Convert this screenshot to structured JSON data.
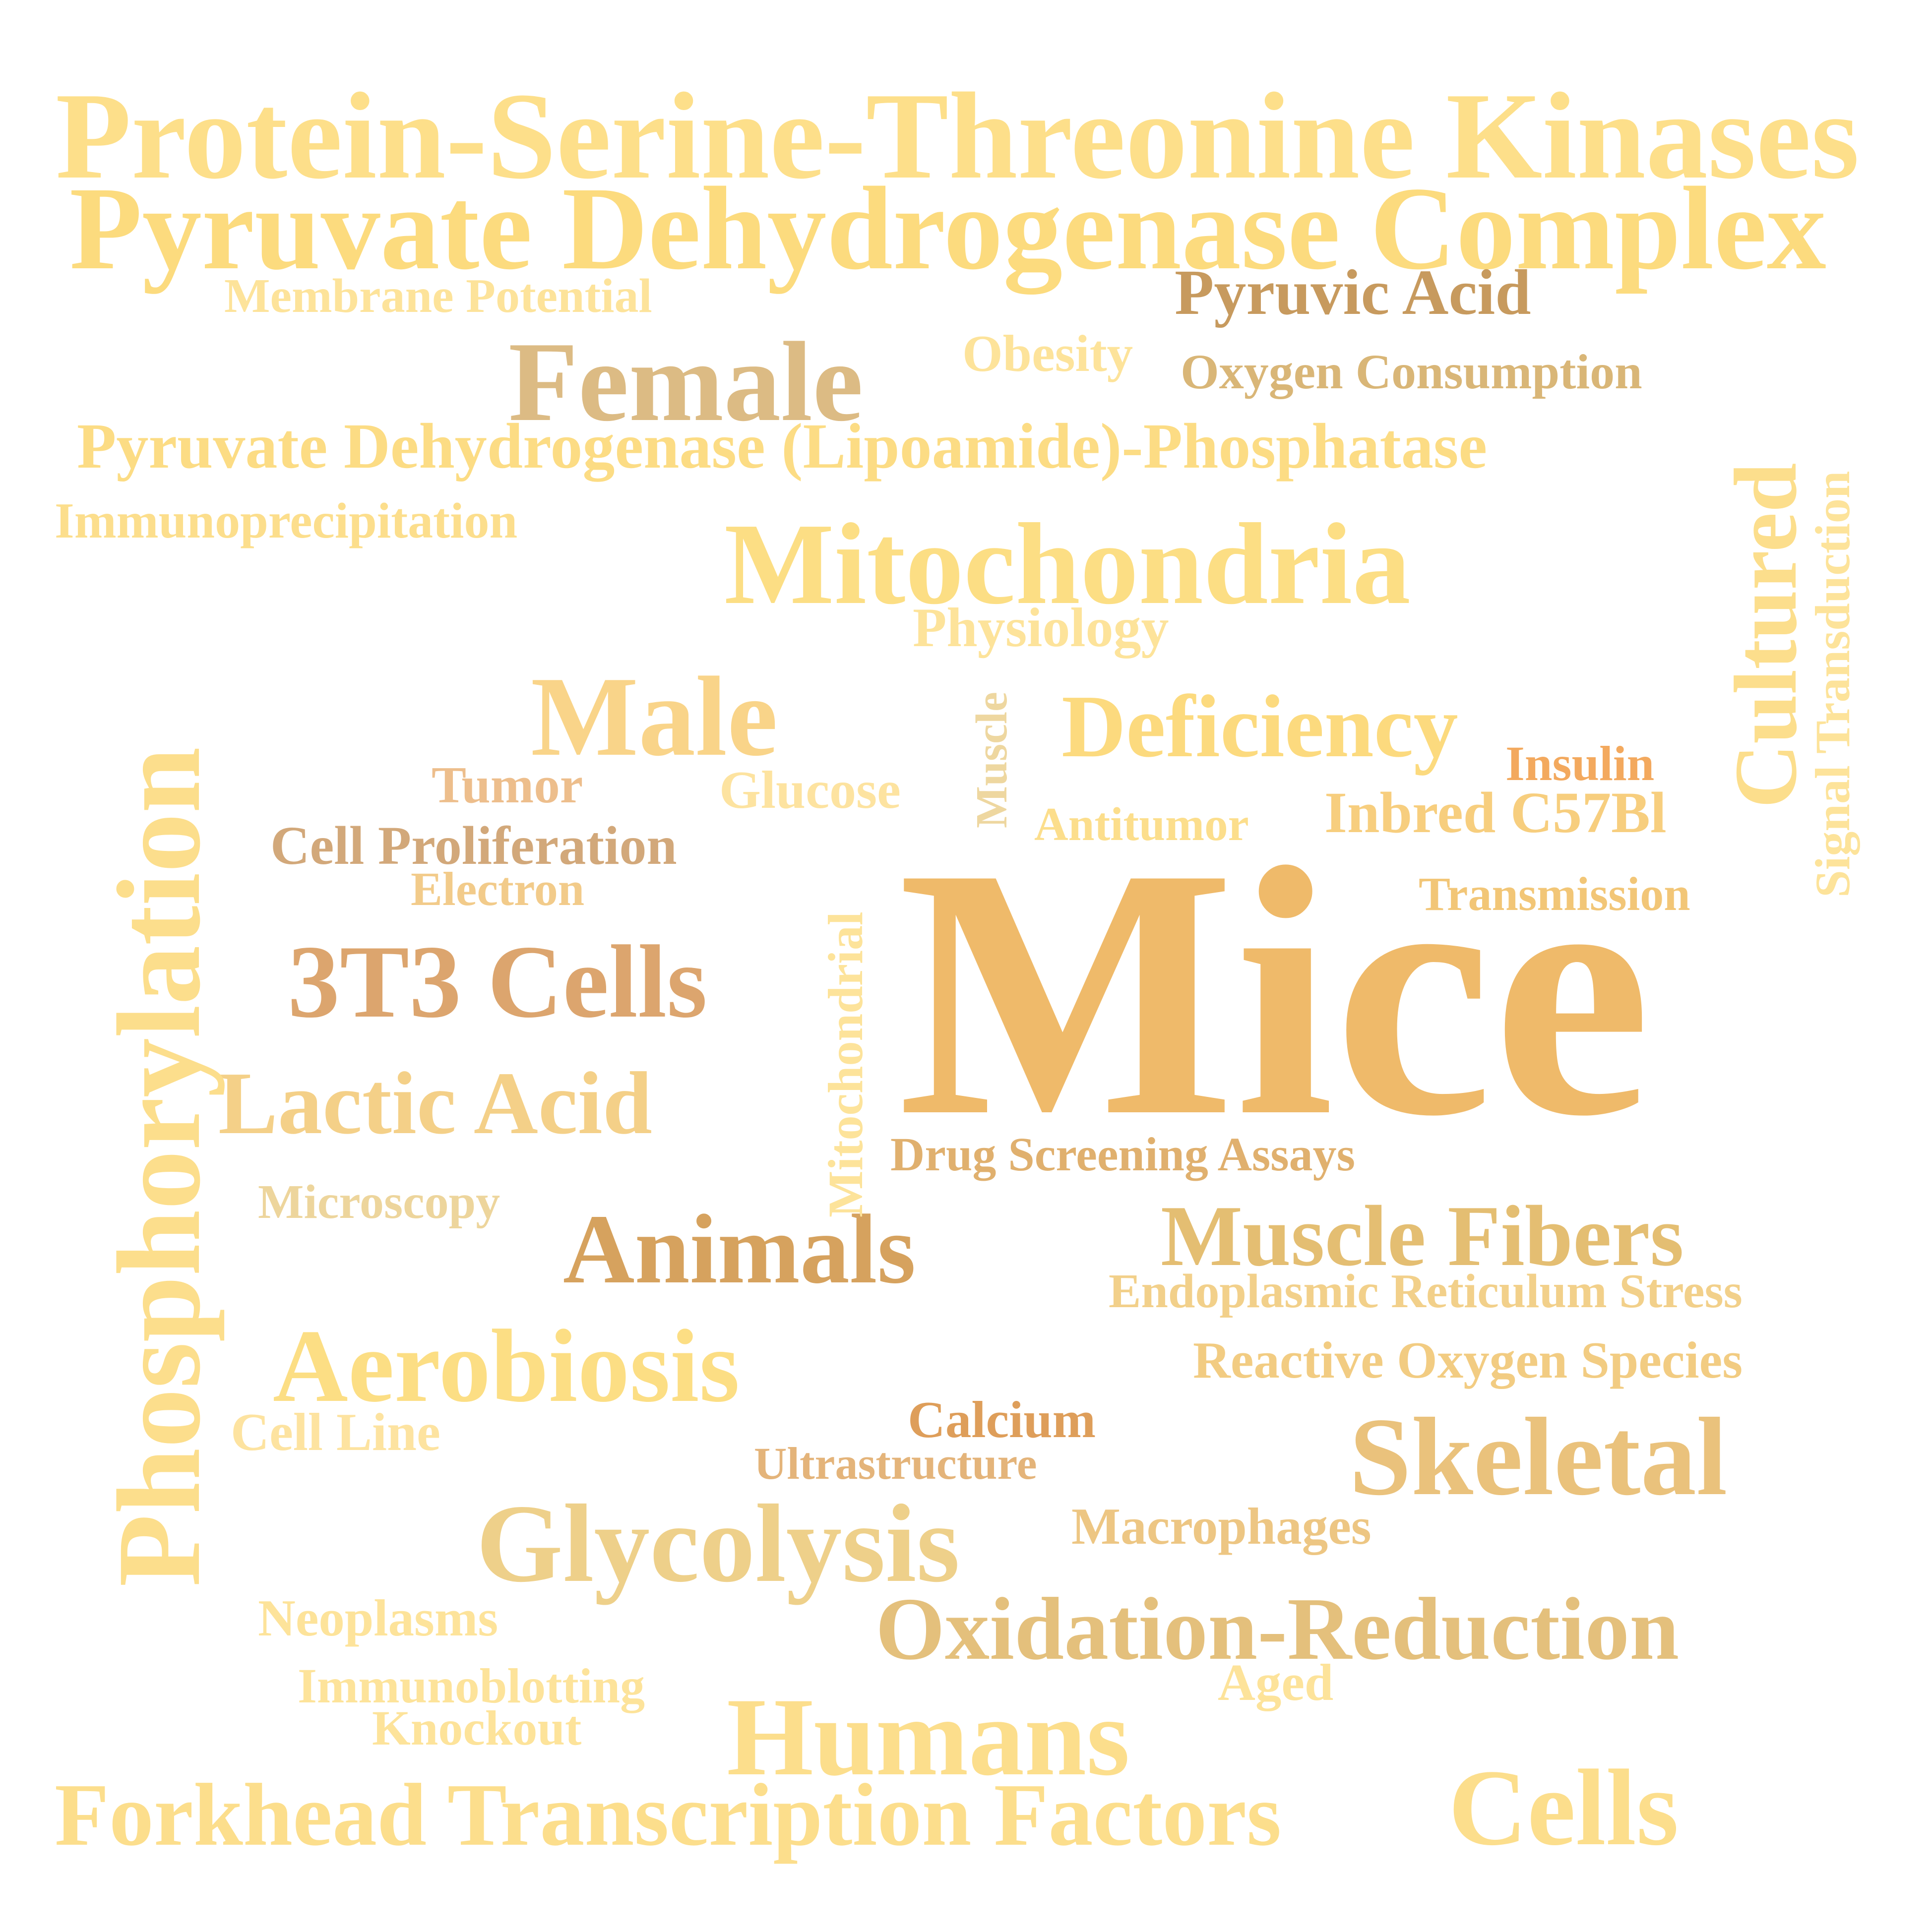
{
  "words": [
    {
      "text": "Protein-Serine-Threonine Kinases",
      "color": "#FDDF8A"
    },
    {
      "text": "Pyruvate Dehydrogenase Complex",
      "color": "#FCDB7E"
    },
    {
      "text": "Membrane Potential",
      "color": "#FDE39A"
    },
    {
      "text": "Pyruvic Acid",
      "color": "#C79A5E"
    },
    {
      "text": "Female",
      "color": "#DCBB84"
    },
    {
      "text": "Obesity",
      "color": "#FDE39A"
    },
    {
      "text": "Oxygen Consumption",
      "color": "#D9B677"
    },
    {
      "text": "Pyruvate Dehydrogenase (Lipoamide)-Phosphatase",
      "color": "#FCDC84"
    },
    {
      "text": "Immunoprecipitation",
      "color": "#FCDE8C"
    },
    {
      "text": "Mitochondria",
      "color": "#FCDE84"
    },
    {
      "text": "Physiology",
      "color": "#FDE39A"
    },
    {
      "text": "Male",
      "color": "#F9D489"
    },
    {
      "text": "Deficiency",
      "color": "#FCDA7E"
    },
    {
      "text": "Insulin",
      "color": "#F3A95E"
    },
    {
      "text": "Tumor",
      "color": "#EDBE8C"
    },
    {
      "text": "Glucose",
      "color": "#FDE3A0"
    },
    {
      "text": "Antitumor",
      "color": "#FCDE8C"
    },
    {
      "text": "Inbred C57Bl",
      "color": "#F7CE7E"
    },
    {
      "text": "Cell Proliferation",
      "color": "#D2A87A"
    },
    {
      "text": "Electron",
      "color": "#F2CB8A"
    },
    {
      "text": "Transmission",
      "color": "#F2C677"
    },
    {
      "text": "Mice",
      "color": "#EFBA6A"
    },
    {
      "text": "3T3 Cells",
      "color": "#DCA56E"
    },
    {
      "text": "Lactic Acid",
      "color": "#F4D088"
    },
    {
      "text": "Drug Screening Assays",
      "color": "#E0B06E"
    },
    {
      "text": "Microscopy",
      "color": "#EDD59C"
    },
    {
      "text": "Animals",
      "color": "#D6A25E"
    },
    {
      "text": "Muscle Fibers",
      "color": "#E4BE72"
    },
    {
      "text": "Endoplasmic Reticulum Stress",
      "color": "#F2D08A"
    },
    {
      "text": "Reactive Oxygen Species",
      "color": "#F2CC82"
    },
    {
      "text": "Aerobiosis",
      "color": "#FCDE84"
    },
    {
      "text": "Cell Line",
      "color": "#FDE3A0"
    },
    {
      "text": "Calcium",
      "color": "#DE9E5A"
    },
    {
      "text": "Ultrastructure",
      "color": "#E4B47A"
    },
    {
      "text": "Skeletal",
      "color": "#EAC27C"
    },
    {
      "text": "Macrophages",
      "color": "#EDC683"
    },
    {
      "text": "Glycolysis",
      "color": "#EED08A"
    },
    {
      "text": "Oxidation-Reduction",
      "color": "#E4C07C"
    },
    {
      "text": "Neoplasms",
      "color": "#FDE39A"
    },
    {
      "text": "Immunoblotting",
      "color": "#FDE39A"
    },
    {
      "text": "Knockout",
      "color": "#FDE39A"
    },
    {
      "text": "Aged",
      "color": "#FDE39A"
    },
    {
      "text": "Humans",
      "color": "#FCDE8C"
    },
    {
      "text": "Forkhead Transcription Factors",
      "color": "#FCDE8C"
    },
    {
      "text": "Cells",
      "color": "#FCDE8C"
    },
    {
      "text": "Phosphorylation",
      "color": "#FCDE8C"
    },
    {
      "text": "Mitochondrial",
      "color": "#FDE39A"
    },
    {
      "text": "Muscle",
      "color": "#EED7A0"
    },
    {
      "text": "Cultured",
      "color": "#FCDE8C"
    },
    {
      "text": "Signal Transduction",
      "color": "#FDE39A"
    }
  ]
}
